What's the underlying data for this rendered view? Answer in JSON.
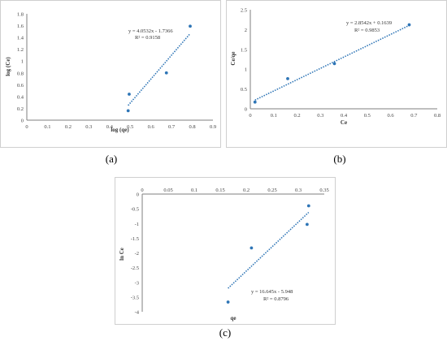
{
  "figure": {
    "captions": [
      "(a)",
      "(b)",
      "(c)"
    ]
  },
  "chart_data": [
    {
      "type": "scatter",
      "panel": "a",
      "title": "",
      "xlabel": "log (qe)",
      "ylabel": "log (Ce)",
      "xlim": [
        0,
        0.9
      ],
      "ylim": [
        0,
        1.8
      ],
      "xticks": [
        "0",
        "0.1",
        "0.2",
        "0.3",
        "0.4",
        "0.5",
        "0.6",
        "0.7",
        "0.8",
        "0.9"
      ],
      "yticks": [
        "0",
        "0.2",
        "0.4",
        "0.6",
        "0.8",
        "1",
        "1.2",
        "1.4",
        "1.6",
        "1.8"
      ],
      "points": [
        {
          "x": 0.49,
          "y": 0.16
        },
        {
          "x": 0.495,
          "y": 0.44
        },
        {
          "x": 0.675,
          "y": 0.8
        },
        {
          "x": 0.79,
          "y": 1.59
        }
      ],
      "trendline": {
        "slope": 4.0532,
        "intercept": -1.7366,
        "x_range": [
          0.49,
          0.79
        ]
      },
      "equation": "y = 4.0532x - 1.7366",
      "r2": "R² = 0.9158",
      "point_color": "#2e75b6",
      "trend_color": "#2e75b6"
    },
    {
      "type": "scatter",
      "panel": "b",
      "title": "",
      "xlabel": "Ce",
      "ylabel": "Ce/qe",
      "xlim": [
        0,
        0.8
      ],
      "ylim": [
        0,
        2.5
      ],
      "xticks": [
        "0",
        "0.1",
        "0.2",
        "0.3",
        "0.4",
        "0.5",
        "0.6",
        "0.7",
        "0.8"
      ],
      "yticks": [
        "0",
        "0.5",
        "1",
        "1.5",
        "2",
        "2.5"
      ],
      "points": [
        {
          "x": 0.02,
          "y": 0.17
        },
        {
          "x": 0.16,
          "y": 0.76
        },
        {
          "x": 0.36,
          "y": 1.14
        },
        {
          "x": 0.68,
          "y": 2.12
        }
      ],
      "trendline": {
        "slope": 2.8542,
        "intercept": 0.1639,
        "x_range": [
          0.02,
          0.68
        ]
      },
      "equation": "y = 2.8542x + 0.1639",
      "r2": "R² = 0.9853",
      "point_color": "#2e75b6",
      "trend_color": "#2e75b6"
    },
    {
      "type": "scatter",
      "panel": "c",
      "title": "",
      "xlabel": "qe",
      "ylabel": "ln Ce",
      "xlim": [
        0,
        0.35
      ],
      "ylim": [
        -4,
        0
      ],
      "xticks": [
        "0",
        "0.05",
        "0.1",
        "0.15",
        "0.2",
        "0.25",
        "0.3",
        "0.35"
      ],
      "yticks": [
        "0",
        "-0.5",
        "-1",
        "-1.5",
        "-2",
        "-2.5",
        "-3",
        "-3.5",
        "-4"
      ],
      "points": [
        {
          "x": 0.165,
          "y": -3.67
        },
        {
          "x": 0.21,
          "y": -1.83
        },
        {
          "x": 0.317,
          "y": -1.03
        },
        {
          "x": 0.32,
          "y": -0.4
        }
      ],
      "trendline": {
        "slope": 16.645,
        "intercept": -5.948,
        "x_range": [
          0.165,
          0.32
        ]
      },
      "equation": "y = 16.645x - 5.948",
      "r2": "R² = 0.8796",
      "point_color": "#2e75b6",
      "trend_color": "#2e75b6"
    }
  ]
}
